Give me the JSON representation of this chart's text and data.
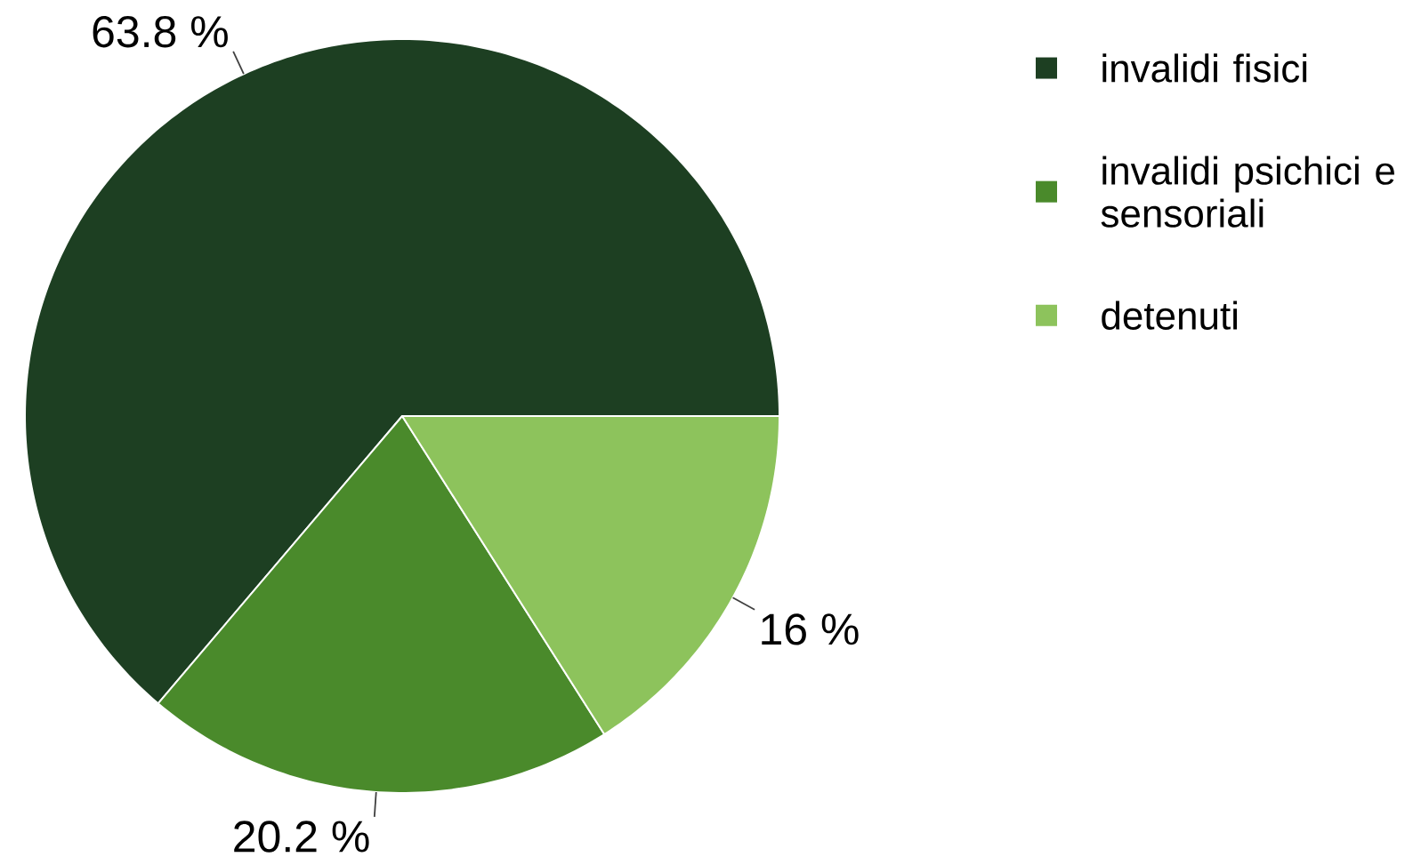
{
  "chart_data": {
    "type": "pie",
    "categories": [
      "invalidi fisici",
      "invalidi psichici e sensoriali",
      "detenuti"
    ],
    "values": [
      63.8,
      20.2,
      16
    ],
    "colors": [
      "#1d3f22",
      "#4a8a2b",
      "#8dc35c"
    ],
    "value_labels": [
      "63.8 %",
      "20.2 %",
      "16 %"
    ],
    "legend": "top right"
  }
}
